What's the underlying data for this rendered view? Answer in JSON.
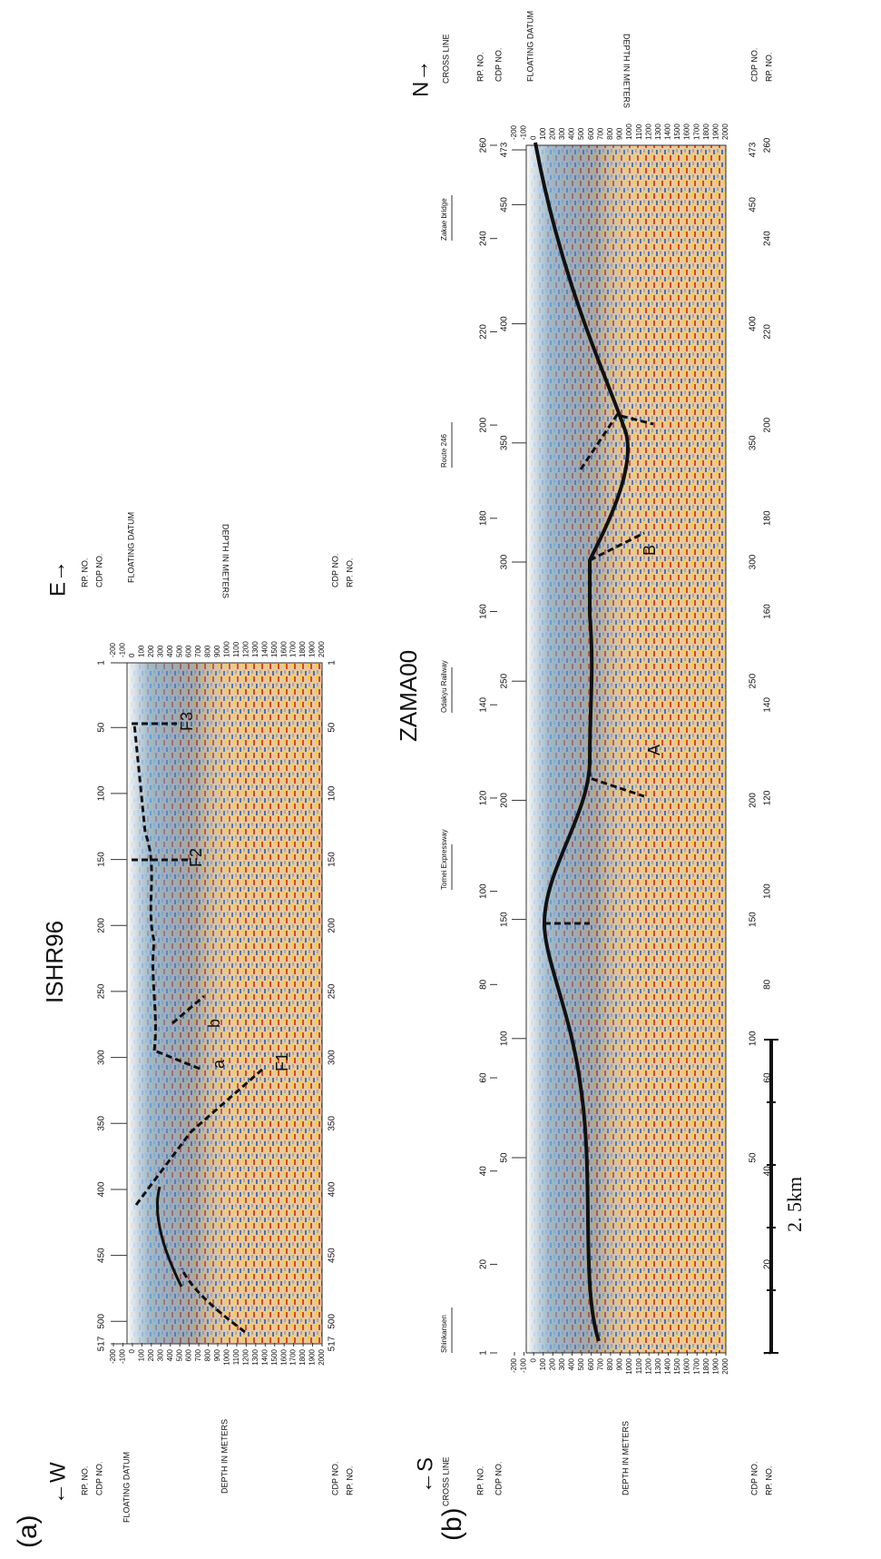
{
  "panel_a": {
    "label": "(a)",
    "title": "ISHR96",
    "left_direction": "←W",
    "right_direction": "E→",
    "rp_label": "RP. NO.",
    "cdp_label": "CDP NO.",
    "datum_label": "FLOATING DATUM",
    "depth_label": "DEPTH IN METERS",
    "cdp_ticks": [
      517,
      500,
      450,
      400,
      350,
      300,
      250,
      200,
      150,
      100,
      50,
      1
    ],
    "depth_ticks": [
      -200,
      -100,
      0,
      100,
      200,
      300,
      400,
      500,
      600,
      700,
      800,
      900,
      1000,
      1100,
      1200,
      1300,
      1400,
      1500,
      1600,
      1700,
      1800,
      1900,
      2000
    ],
    "features": [
      "F1",
      "F2",
      "F3",
      "a",
      "b"
    ]
  },
  "panel_b": {
    "label": "(b)",
    "title": "ZAMA00",
    "left_direction": "←S",
    "right_direction": "N→",
    "cross_line": "CROSS LINE",
    "rp_label": "RP. NO.",
    "cdp_label": "CDP NO.",
    "datum_label": "FLOATING DATUM",
    "depth_label": "DEPTH IN METERS",
    "rp_ticks": [
      1,
      20,
      40,
      60,
      80,
      100,
      120,
      140,
      160,
      180,
      200,
      220,
      240,
      260
    ],
    "cdp_ticks": [
      50,
      100,
      150,
      200,
      250,
      300,
      350,
      400,
      450,
      473
    ],
    "depth_ticks": [
      -200,
      -100,
      0,
      100,
      200,
      300,
      400,
      500,
      600,
      700,
      800,
      900,
      1000,
      1100,
      1200,
      1300,
      1400,
      1500,
      1600,
      1700,
      1800,
      1900,
      2000
    ],
    "places": [
      "Shinkansen",
      "Tomei Expressway",
      "Odakyu Railway",
      "Route 246",
      "Zakae bridge"
    ],
    "features": [
      "A",
      "B"
    ],
    "scale": "2. 5km"
  }
}
